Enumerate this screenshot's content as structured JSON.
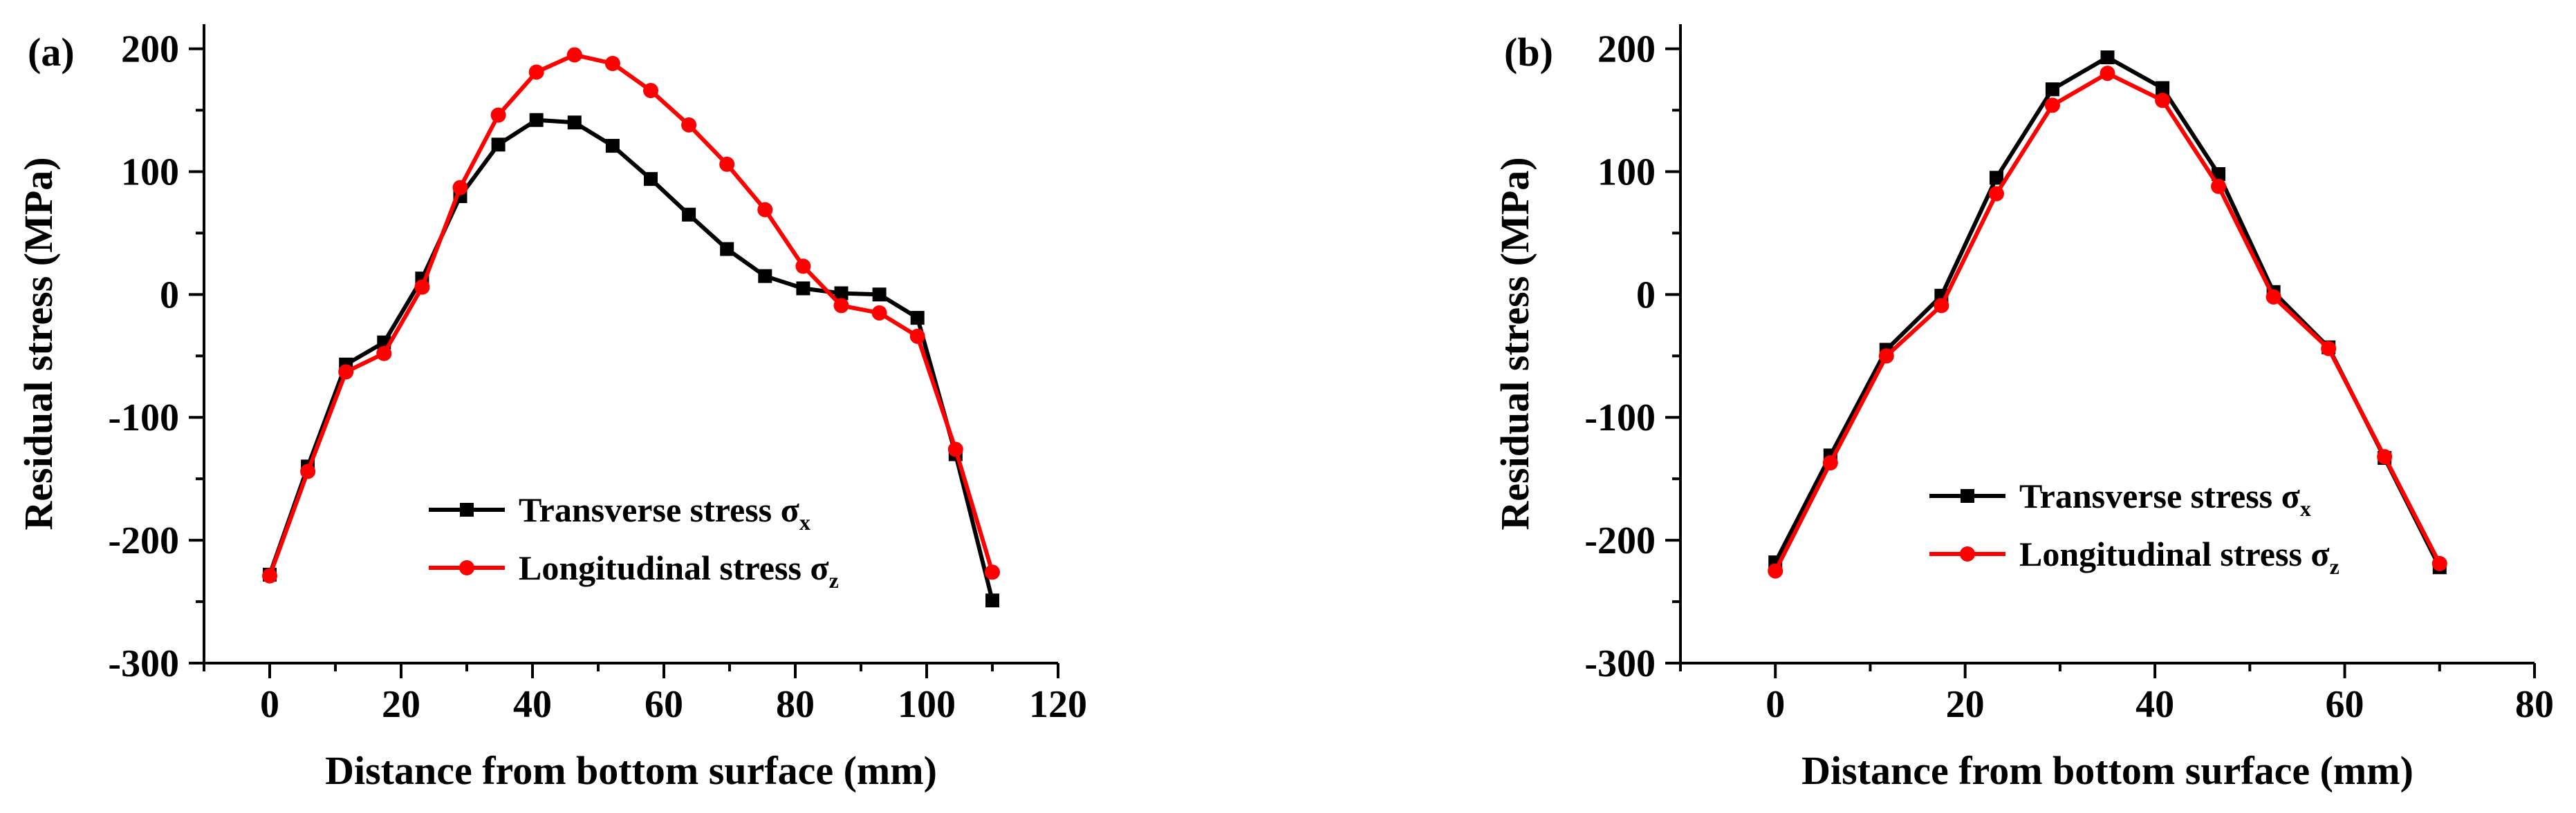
{
  "chart_data": [
    {
      "type": "line",
      "panel_label": "(a)",
      "xlabel": "Distance from bottom surface (mm)",
      "ylabel": "Residual stress (MPa)",
      "xlim": [
        -10,
        120
      ],
      "ylim": [
        -300,
        220
      ],
      "xticks": [
        0,
        20,
        40,
        60,
        80,
        100,
        120
      ],
      "xtick_labels": [
        "0",
        "20",
        "40",
        "60",
        "80",
        "100",
        "120"
      ],
      "yticks": [
        -300,
        -200,
        -100,
        0,
        100,
        200
      ],
      "ytick_labels": [
        "-300",
        "-200",
        "-100",
        "0",
        "100",
        "200"
      ],
      "legend_position": "lower-center",
      "series": [
        {
          "name": "Transverse stress σx",
          "legend_main": "Transverse stress σ",
          "legend_sub": "x",
          "color": "#000000",
          "marker": "square",
          "x": [
            0,
            5.8,
            11.6,
            17.4,
            23.2,
            29,
            34.8,
            40.6,
            46.4,
            52.2,
            58,
            63.8,
            69.6,
            75.4,
            81.2,
            87,
            92.8,
            98.6,
            104.4,
            110
          ],
          "y": [
            -228,
            -140,
            -57,
            -39,
            13,
            80,
            122,
            142,
            140,
            121,
            94,
            65,
            37,
            15,
            5,
            1,
            0,
            -19,
            -130,
            -249
          ]
        },
        {
          "name": "Longitudinal stress σz",
          "legend_main": "Longitudinal stress σ",
          "legend_sub": "z",
          "color": "#ff0000",
          "marker": "circle",
          "x": [
            0,
            5.8,
            11.6,
            17.4,
            23.2,
            29,
            34.8,
            40.6,
            46.4,
            52.2,
            58,
            63.8,
            69.6,
            75.4,
            81.2,
            87,
            92.8,
            98.6,
            104.4,
            110
          ],
          "y": [
            -229,
            -144,
            -63,
            -48,
            6,
            87,
            146,
            181,
            195,
            188,
            166,
            138,
            106,
            69,
            23,
            -9,
            -15,
            -34,
            -126,
            -226
          ]
        }
      ]
    },
    {
      "type": "line",
      "panel_label": "(b)",
      "xlabel": "Distance from bottom surface (mm)",
      "ylabel": "Residual stress (MPa)",
      "xlim": [
        -10,
        80
      ],
      "ylim": [
        -300,
        220
      ],
      "xticks": [
        0,
        20,
        40,
        60,
        80
      ],
      "xtick_labels": [
        "0",
        "20",
        "40",
        "60",
        "80"
      ],
      "yticks": [
        -300,
        -200,
        -100,
        0,
        100,
        200
      ],
      "ytick_labels": [
        "-300",
        "-200",
        "-100",
        "0",
        "100",
        "200"
      ],
      "legend_position": "lower-center",
      "series": [
        {
          "name": "Transverse stress σx",
          "legend_main": "Transverse stress σ",
          "legend_sub": "x",
          "color": "#000000",
          "marker": "square",
          "x": [
            0,
            5.8,
            11.7,
            17.5,
            23.3,
            29.2,
            35,
            40.8,
            46.7,
            52.5,
            58.3,
            64.2,
            70
          ],
          "y": [
            -218,
            -131,
            -45,
            -1,
            95,
            167,
            193,
            168,
            98,
            2,
            -43,
            -133,
            -222
          ]
        },
        {
          "name": "Longitudinal stress σz",
          "legend_main": "Longitudinal stress σ",
          "legend_sub": "z",
          "color": "#ff0000",
          "marker": "circle",
          "x": [
            0,
            5.8,
            11.7,
            17.5,
            23.3,
            29.2,
            35,
            40.8,
            46.7,
            52.5,
            58.3,
            64.2,
            70
          ],
          "y": [
            -225,
            -137,
            -50,
            -9,
            82,
            154,
            180,
            158,
            88,
            -2,
            -44,
            -132,
            -219
          ]
        }
      ]
    }
  ]
}
